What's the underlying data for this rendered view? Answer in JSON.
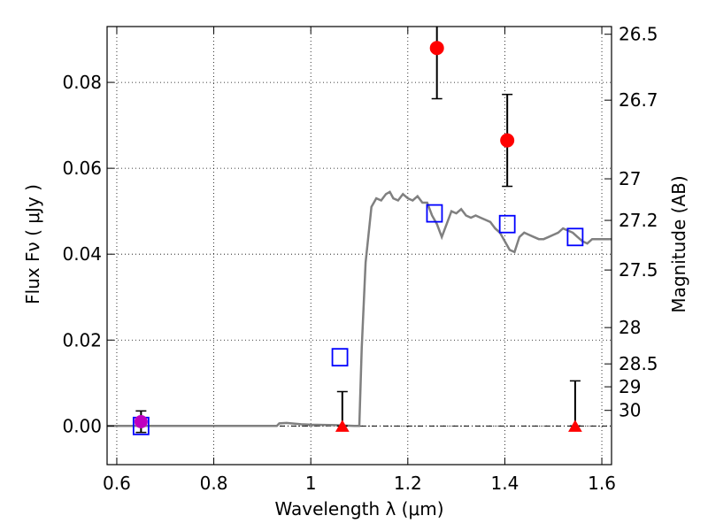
{
  "chart_data": {
    "type": "scatter",
    "xlabel": "Wavelength  λ (μm)",
    "ylabel": "Flux  Fν  ( μJy )",
    "y2label": "Magnitude (AB)",
    "xlim": [
      0.58,
      1.62
    ],
    "ylim": [
      -0.009,
      0.093
    ],
    "grid": true,
    "x_ticks": [
      0.6,
      0.8,
      1.0,
      1.2,
      1.4,
      1.6
    ],
    "x_tick_labels": [
      "0.6",
      "0.8",
      "1",
      "1.2",
      "1.4",
      "1.6"
    ],
    "y_ticks": [
      0.0,
      0.02,
      0.04,
      0.06,
      0.08
    ],
    "y_tick_labels": [
      "0.00",
      "0.02",
      "0.04",
      "0.06",
      "0.08"
    ],
    "mag_ticks": [
      26.5,
      26.7,
      27,
      27.2,
      27.5,
      28,
      28.5,
      29,
      30
    ],
    "mag_tick_labels": [
      "26.5",
      "26.7",
      "27",
      "27.2",
      "27.5",
      "28",
      "28.5",
      "29",
      "30"
    ],
    "series": [
      {
        "kind": "model_sed_line",
        "color": "#808080",
        "x": [
          0.58,
          0.6,
          0.7,
          0.8,
          0.9,
          0.93,
          0.935,
          0.95,
          0.98,
          1.0,
          1.05,
          1.09,
          1.1,
          1.105,
          1.113,
          1.125,
          1.135,
          1.145,
          1.155,
          1.163,
          1.17,
          1.18,
          1.19,
          1.2,
          1.21,
          1.22,
          1.23,
          1.24,
          1.25,
          1.26,
          1.27,
          1.28,
          1.29,
          1.3,
          1.31,
          1.32,
          1.33,
          1.34,
          1.35,
          1.36,
          1.37,
          1.38,
          1.39,
          1.4,
          1.41,
          1.42,
          1.43,
          1.44,
          1.45,
          1.46,
          1.47,
          1.48,
          1.49,
          1.5,
          1.51,
          1.52,
          1.53,
          1.54,
          1.55,
          1.56,
          1.57,
          1.58,
          1.59,
          1.6,
          1.61,
          1.62
        ],
        "y": [
          0.0,
          0.0,
          0.0,
          0.0,
          0.0,
          0.0,
          0.0006,
          0.0007,
          0.0004,
          0.0003,
          0.0002,
          0.0,
          0.0,
          0.018,
          0.038,
          0.051,
          0.053,
          0.0525,
          0.054,
          0.0545,
          0.053,
          0.0525,
          0.054,
          0.053,
          0.0525,
          0.0535,
          0.052,
          0.052,
          0.049,
          0.047,
          0.044,
          0.047,
          0.05,
          0.0495,
          0.0505,
          0.049,
          0.0485,
          0.049,
          0.0485,
          0.048,
          0.0475,
          0.046,
          0.045,
          0.043,
          0.041,
          0.0405,
          0.044,
          0.045,
          0.0445,
          0.044,
          0.0435,
          0.0435,
          0.044,
          0.0445,
          0.045,
          0.046,
          0.0455,
          0.045,
          0.044,
          0.043,
          0.0425,
          0.0435,
          0.0435,
          0.0435,
          0.0435,
          0.0435
        ]
      },
      {
        "kind": "model_band_flux",
        "marker": "open-square",
        "color": "#0000ff",
        "x": [
          0.65,
          1.06,
          1.255,
          1.405,
          1.545
        ],
        "y": [
          0.0,
          0.016,
          0.0495,
          0.047,
          0.044
        ]
      },
      {
        "kind": "detections",
        "marker": "circle",
        "color": "#ff0000",
        "x": [
          1.26,
          1.405
        ],
        "y": [
          0.088,
          0.0665
        ],
        "yerr": [
          [
            0.0118,
            0.0118
          ],
          [
            0.0107,
            0.0107
          ]
        ]
      },
      {
        "kind": "upper_limits",
        "marker": "triangle",
        "color": "#ff0000",
        "x": [
          1.065,
          1.545
        ],
        "y": [
          0.0,
          0.0
        ],
        "yerr_up": [
          0.008,
          0.0105
        ]
      },
      {
        "kind": "optical_point",
        "marker": "circle",
        "color": "#bf00bf",
        "x": [
          0.65
        ],
        "y": [
          0.001
        ],
        "yerr": [
          [
            0.0025,
            0.0025
          ]
        ]
      }
    ]
  }
}
